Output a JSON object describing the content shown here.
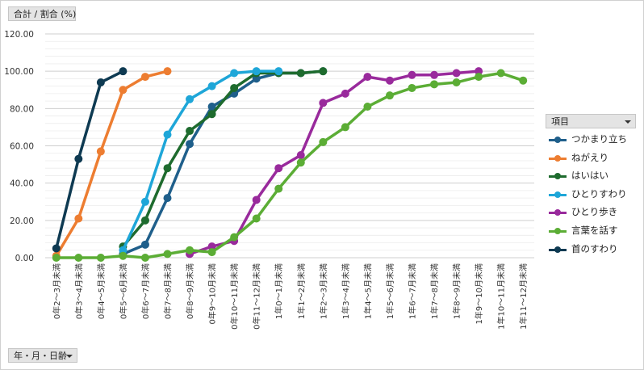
{
  "value_field_button": {
    "label": "合計 / 割合 (%)"
  },
  "axis_field_button": {
    "label": "年・月・日齢"
  },
  "legend_field_button": {
    "label": "項目"
  },
  "chart_data": {
    "type": "line",
    "ylim": [
      0,
      120
    ],
    "yticks": [
      "0.00",
      "20.00",
      "40.00",
      "60.00",
      "80.00",
      "100.00",
      "120.00"
    ],
    "grid": true,
    "legend": "right",
    "categories": [
      "0年2～3月未満",
      "0年3～4月未満",
      "0年4～5月未満",
      "0年5～6月未満",
      "0年6～7月未満",
      "0年7～8月未満",
      "0年8～9月未満",
      "0年9～10月未満",
      "0年10～11月未満",
      "0年11～12月未満",
      "1年0～1月未満",
      "1年1～2月未満",
      "1年2～3月未満",
      "1年3～4月未満",
      "1年4～5月未満",
      "1年5～6月未満",
      "1年6～7月未満",
      "1年7～8月未満",
      "1年8～9月未満",
      "1年9～10月未満",
      "1年10～11月未満",
      "1年11～12月未満"
    ],
    "series": [
      {
        "name": "つかまり立ち",
        "color": "#1f5f8b",
        "values": [
          null,
          null,
          null,
          2,
          7,
          32,
          61,
          81,
          88,
          96,
          99,
          99,
          100,
          null,
          null,
          null,
          null,
          null,
          null,
          null,
          null,
          null
        ]
      },
      {
        "name": "ねがえり",
        "color": "#ed7d31",
        "values": [
          1,
          21,
          57,
          90,
          97,
          100,
          null,
          null,
          null,
          null,
          null,
          null,
          null,
          null,
          null,
          null,
          null,
          null,
          null,
          null,
          null,
          null
        ]
      },
      {
        "name": "はいはい",
        "color": "#1e6b2e",
        "values": [
          null,
          null,
          null,
          6,
          20,
          48,
          68,
          77,
          91,
          99,
          99,
          99,
          100,
          null,
          null,
          null,
          null,
          null,
          null,
          null,
          null,
          null
        ]
      },
      {
        "name": "ひとりすわり",
        "color": "#1ea6d8",
        "values": [
          null,
          null,
          null,
          4,
          30,
          66,
          85,
          92,
          99,
          100,
          100,
          null,
          null,
          null,
          null,
          null,
          null,
          null,
          null,
          null,
          null,
          null
        ]
      },
      {
        "name": "ひとり歩き",
        "color": "#992a9c",
        "values": [
          null,
          null,
          null,
          null,
          null,
          null,
          2,
          6,
          9,
          31,
          48,
          55,
          83,
          88,
          97,
          95,
          98,
          98,
          99,
          100,
          null,
          null
        ]
      },
      {
        "name": "言葉を話す",
        "color": "#5bad35",
        "values": [
          0,
          0,
          0,
          1,
          0,
          2,
          4,
          3,
          11,
          21,
          37,
          51,
          62,
          70,
          81,
          87,
          91,
          93,
          94,
          97,
          99,
          95
        ]
      },
      {
        "name": "首のすわり",
        "color": "#0e3a52",
        "values": [
          5,
          53,
          94,
          100,
          null,
          null,
          null,
          null,
          null,
          null,
          null,
          null,
          null,
          null,
          null,
          null,
          null,
          null,
          null,
          null,
          null,
          null
        ]
      }
    ]
  }
}
